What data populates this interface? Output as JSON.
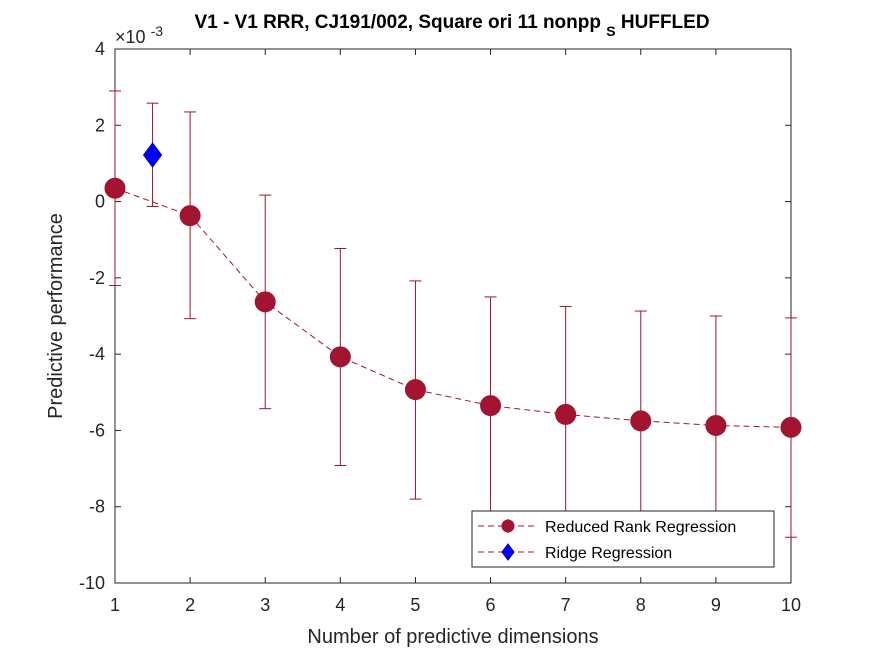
{
  "chart_data": {
    "type": "line",
    "title": "V1 - V1 RRR, CJ191/002, Square ori 11 nonpp",
    "title_sub": "S",
    "title_tail": "HUFFLED",
    "xlabel": "Number of predictive dimensions",
    "ylabel": "Predictive performance",
    "exponent_label": "×10",
    "exponent_power": "-3",
    "xlim": [
      1,
      10
    ],
    "ylim": [
      -10,
      4
    ],
    "x_ticks": [
      "1",
      "2",
      "3",
      "4",
      "5",
      "6",
      "7",
      "8",
      "9",
      "10"
    ],
    "y_ticks": [
      "-10",
      "-8",
      "-6",
      "-4",
      "-2",
      "0",
      "2",
      "4"
    ],
    "grid": false,
    "legend_position": "bottom-right",
    "series": [
      {
        "name": "Reduced Rank Regression",
        "color": "#A2142F",
        "marker": "circle",
        "linestyle": "dashed",
        "x": [
          1,
          2,
          3,
          4,
          5,
          6,
          7,
          8,
          9,
          10
        ],
        "y": [
          0.35,
          -0.37,
          -2.63,
          -4.07,
          -4.93,
          -5.35,
          -5.58,
          -5.75,
          -5.87,
          -5.92
        ],
        "err_low": [
          -2.2,
          -3.07,
          -5.43,
          -6.92,
          -7.8,
          -8.3,
          -8.4,
          -8.5,
          -8.6,
          -8.8
        ],
        "err_high": [
          2.9,
          2.35,
          0.17,
          -1.23,
          -2.08,
          -2.5,
          -2.75,
          -2.87,
          -3.0,
          -3.05
        ]
      },
      {
        "name": "Ridge Regression",
        "color": "#0000FF",
        "marker": "diamond",
        "linestyle": "dashed",
        "x": [
          1.5
        ],
        "y": [
          1.22
        ],
        "err_low": [
          -0.13
        ],
        "err_high": [
          2.58
        ]
      }
    ]
  }
}
